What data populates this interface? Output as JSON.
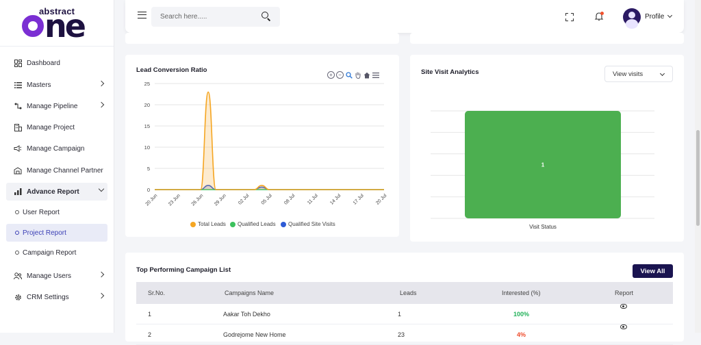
{
  "brand": {
    "logo_top": "abstract",
    "logo_main": "ne"
  },
  "sidebar": {
    "items": [
      {
        "label": "Dashboard",
        "icon": "dashboard-icon"
      },
      {
        "label": "Masters",
        "icon": "list-icon"
      },
      {
        "label": "Manage Pipeline",
        "icon": "pipeline-icon"
      },
      {
        "label": "Manage Project",
        "icon": "building-icon"
      },
      {
        "label": "Manage Campaign",
        "icon": "megaphone-icon"
      },
      {
        "label": "Manage Channel Partner",
        "icon": "partner-icon"
      },
      {
        "label": "Advance Report",
        "icon": "report-icon"
      },
      {
        "label": "Manage Users",
        "icon": "users-icon"
      },
      {
        "label": "CRM Settings",
        "icon": "gear-icon"
      }
    ],
    "sub_items": [
      {
        "label": "User Report"
      },
      {
        "label": "Project Report"
      },
      {
        "label": "Campaign Report"
      }
    ]
  },
  "header": {
    "search_placeholder": "Search here.....",
    "profile_label": "Profile"
  },
  "lead_card": {
    "title": "Lead Conversion Ratio"
  },
  "site_card": {
    "title": "Site Visit Analytics",
    "select_value": "View visits"
  },
  "table_card": {
    "title": "Top Performing Campaign List",
    "view_all": "View All",
    "columns": [
      "Sr.No.",
      "Campaigns Name",
      "Leads",
      "Interested (%)",
      "Report"
    ],
    "rows": [
      {
        "sr": "1",
        "name": "Aakar Toh Dekho",
        "leads": "1",
        "interested": "100%"
      },
      {
        "sr": "2",
        "name": "Godrejome New Home",
        "leads": "23",
        "interested": "4%"
      }
    ]
  },
  "colors": {
    "total_leads": "#f5a623",
    "qualified_leads": "#3cc15d",
    "qualified_site_visits": "#2e5bd6",
    "site_bar": "#4caf50"
  },
  "chart_data": [
    {
      "type": "area",
      "title": "Lead Conversion Ratio",
      "categories": [
        "20 Jun",
        "23 Jun",
        "26 Jun",
        "29 Jun",
        "02 Jul",
        "05 Jul",
        "08 Jul",
        "11 Jul",
        "14 Jul",
        "17 Jul",
        "20 Jul"
      ],
      "x_days": [
        0,
        3,
        6,
        9,
        12,
        15,
        18,
        21,
        24,
        27,
        30
      ],
      "ylim": [
        0,
        25
      ],
      "yticks": [
        0,
        5,
        10,
        15,
        20,
        25
      ],
      "grid": true,
      "legend": "bottom",
      "series": [
        {
          "name": "Total Leads",
          "points": [
            [
              0,
              0
            ],
            [
              5,
              0
            ],
            [
              6,
              0
            ],
            [
              7,
              23
            ],
            [
              8,
              0
            ],
            [
              13,
              0
            ],
            [
              14,
              1
            ],
            [
              15,
              0
            ],
            [
              30,
              0
            ]
          ]
        },
        {
          "name": "Qualified Leads",
          "points": [
            [
              0,
              0
            ],
            [
              30,
              0
            ]
          ]
        },
        {
          "name": "Qualified Site Visits",
          "points": [
            [
              0,
              0
            ],
            [
              6,
              0
            ],
            [
              7,
              1
            ],
            [
              8,
              0
            ],
            [
              13,
              0
            ],
            [
              14,
              0.6
            ],
            [
              15,
              0
            ],
            [
              30,
              0
            ]
          ]
        }
      ]
    },
    {
      "type": "bar",
      "title": "Site Visit Analytics",
      "categories": [
        "Visit Status"
      ],
      "values": [
        1
      ],
      "data_labels": [
        "1"
      ],
      "grid": true
    }
  ]
}
